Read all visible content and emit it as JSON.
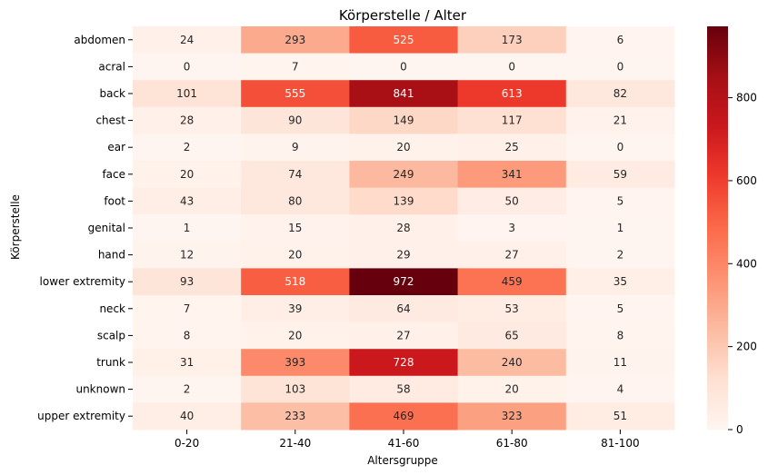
{
  "chart_data": {
    "type": "heatmap",
    "title": "Körperstelle / Alter",
    "xlabel": "Altersgruppe",
    "ylabel": "Körperstelle",
    "x_categories": [
      "0-20",
      "21-40",
      "41-60",
      "61-80",
      "81-100"
    ],
    "y_categories": [
      "abdomen",
      "acral",
      "back",
      "chest",
      "ear",
      "face",
      "foot",
      "genital",
      "hand",
      "lower extremity",
      "neck",
      "scalp",
      "trunk",
      "unknown",
      "upper extremity"
    ],
    "values": [
      [
        24,
        293,
        525,
        173,
        6
      ],
      [
        0,
        7,
        0,
        0,
        0
      ],
      [
        101,
        555,
        841,
        613,
        82
      ],
      [
        28,
        90,
        149,
        117,
        21
      ],
      [
        2,
        9,
        20,
        25,
        0
      ],
      [
        20,
        74,
        249,
        341,
        59
      ],
      [
        43,
        80,
        139,
        50,
        5
      ],
      [
        1,
        15,
        28,
        3,
        1
      ],
      [
        12,
        20,
        29,
        27,
        2
      ],
      [
        93,
        518,
        972,
        459,
        35
      ],
      [
        7,
        39,
        64,
        53,
        5
      ],
      [
        8,
        20,
        27,
        65,
        8
      ],
      [
        31,
        393,
        728,
        240,
        11
      ],
      [
        2,
        103,
        58,
        20,
        4
      ],
      [
        40,
        233,
        469,
        323,
        51
      ]
    ],
    "colorbar": {
      "colormap": "Reds",
      "range": [
        0,
        972
      ],
      "ticks": [
        0,
        200,
        400,
        600,
        800
      ]
    }
  }
}
